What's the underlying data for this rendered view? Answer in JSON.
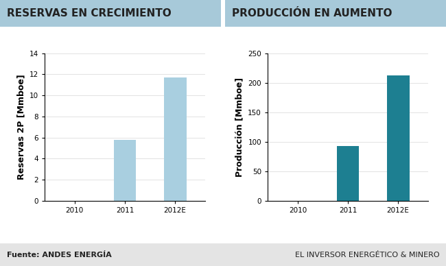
{
  "chart_data": [
    {
      "type": "bar",
      "title": "RESERVAS EN CRECIMIENTO",
      "y_label": "Reservas 2P [Mmboe]",
      "categories": [
        "2010",
        "2011",
        "2012E"
      ],
      "values": [
        null,
        5.8,
        11.7
      ],
      "color": "#a9cfe0",
      "ylim": [
        0,
        14
      ],
      "yticks": [
        0,
        2,
        4,
        6,
        8,
        10,
        12,
        14
      ],
      "grid": true
    },
    {
      "type": "bar",
      "title": "PRODUCCIÓN EN AUMENTO",
      "y_label": "Producción [Mmboe]",
      "categories": [
        "2010",
        "2011",
        "2012E"
      ],
      "values": [
        null,
        93,
        212
      ],
      "color": "#1d7f91",
      "ylim": [
        0,
        250
      ],
      "yticks": [
        0,
        50,
        100,
        150,
        200,
        250
      ],
      "grid": true
    }
  ],
  "footer": {
    "source": "Fuente: ANDES ENERGÍA",
    "publisher": "EL INVERSOR ENERGÉTICO & MINERO"
  }
}
